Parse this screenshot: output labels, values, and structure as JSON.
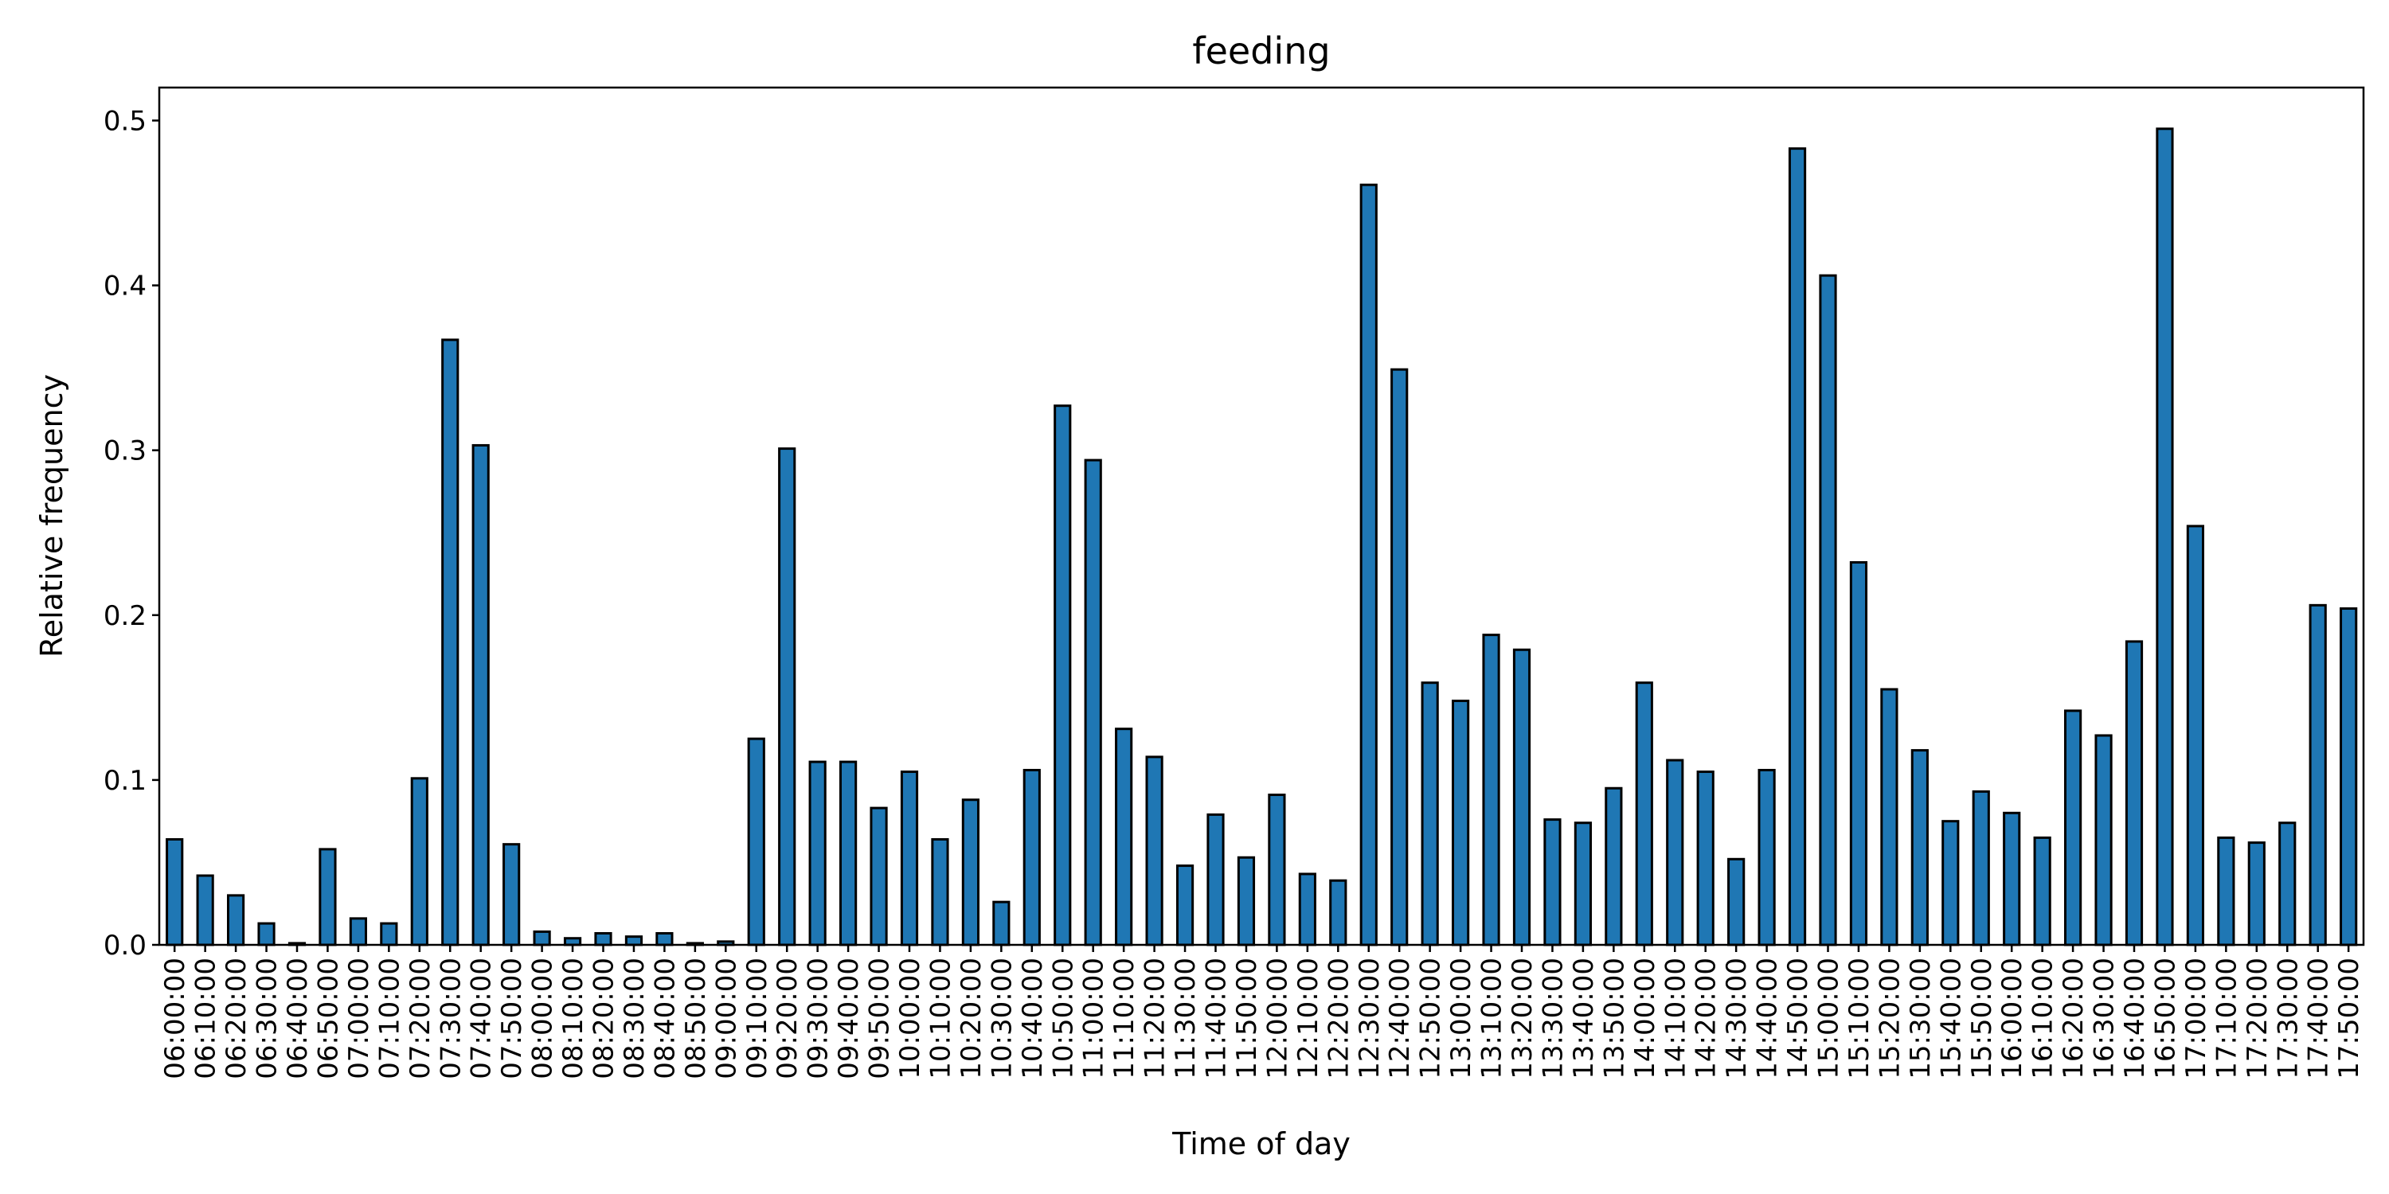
{
  "chart_data": {
    "type": "bar",
    "title": "feeding",
    "xlabel": "Time of day",
    "ylabel": "Relative frequency",
    "ylim": [
      0,
      0.52
    ],
    "yticks": [
      "0.0",
      "0.1",
      "0.2",
      "0.3",
      "0.4",
      "0.5"
    ],
    "grid": false,
    "bar_color": "#1f77b4",
    "edge_color": "#000000",
    "categories": [
      "06:00:00",
      "06:10:00",
      "06:20:00",
      "06:30:00",
      "06:40:00",
      "06:50:00",
      "07:00:00",
      "07:10:00",
      "07:20:00",
      "07:30:00",
      "07:40:00",
      "07:50:00",
      "08:00:00",
      "08:10:00",
      "08:20:00",
      "08:30:00",
      "08:40:00",
      "08:50:00",
      "09:00:00",
      "09:10:00",
      "09:20:00",
      "09:30:00",
      "09:40:00",
      "09:50:00",
      "10:00:00",
      "10:10:00",
      "10:20:00",
      "10:30:00",
      "10:40:00",
      "10:50:00",
      "11:00:00",
      "11:10:00",
      "11:20:00",
      "11:30:00",
      "11:40:00",
      "11:50:00",
      "12:00:00",
      "12:10:00",
      "12:20:00",
      "12:30:00",
      "12:40:00",
      "12:50:00",
      "13:00:00",
      "13:10:00",
      "13:20:00",
      "13:30:00",
      "13:40:00",
      "13:50:00",
      "14:00:00",
      "14:10:00",
      "14:20:00",
      "14:30:00",
      "14:40:00",
      "14:50:00",
      "15:00:00",
      "15:10:00",
      "15:20:00",
      "15:30:00",
      "15:40:00",
      "15:50:00",
      "16:00:00",
      "16:10:00",
      "16:20:00",
      "16:30:00",
      "16:40:00",
      "16:50:00",
      "17:00:00",
      "17:10:00",
      "17:20:00",
      "17:30:00",
      "17:40:00",
      "17:50:00"
    ],
    "values": [
      0.064,
      0.042,
      0.03,
      0.013,
      0.001,
      0.058,
      0.016,
      0.013,
      0.101,
      0.367,
      0.303,
      0.061,
      0.008,
      0.004,
      0.007,
      0.005,
      0.007,
      0.001,
      0.002,
      0.125,
      0.301,
      0.111,
      0.111,
      0.083,
      0.105,
      0.064,
      0.088,
      0.026,
      0.106,
      0.327,
      0.294,
      0.131,
      0.114,
      0.048,
      0.079,
      0.053,
      0.091,
      0.043,
      0.039,
      0.461,
      0.349,
      0.159,
      0.148,
      0.188,
      0.179,
      0.076,
      0.074,
      0.095,
      0.159,
      0.112,
      0.105,
      0.052,
      0.106,
      0.483,
      0.406,
      0.232,
      0.155,
      0.118,
      0.075,
      0.093,
      0.08,
      0.065,
      0.142,
      0.127,
      0.184,
      0.495,
      0.254,
      0.065,
      0.062,
      0.074,
      0.206,
      0.204
    ]
  }
}
